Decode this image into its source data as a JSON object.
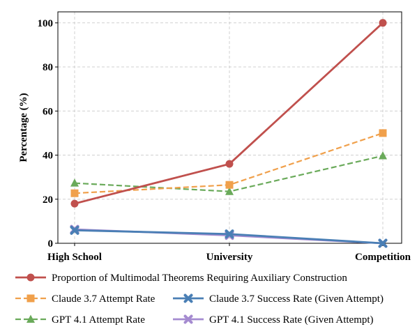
{
  "chart_data": {
    "type": "line",
    "categories": [
      "High School",
      "University",
      "Competition"
    ],
    "ylabel": "Percentage (%)",
    "xlabel": "",
    "title": "",
    "ylim": [
      0,
      105
    ],
    "yticks": [
      0,
      20,
      40,
      60,
      80,
      100
    ],
    "grid": true,
    "legend_position": "bottom",
    "series": [
      {
        "name": "Proportion of Multimodal Theorems Requiring Auxiliary Construction",
        "values": [
          18,
          36,
          100
        ],
        "color": "#c0504d",
        "marker": "circle",
        "dash": "solid"
      },
      {
        "name": "Claude 3.7 Attempt Rate",
        "values": [
          22.7,
          26.5,
          50
        ],
        "color": "#f0a04b",
        "marker": "square",
        "dash": "dashed"
      },
      {
        "name": "GPT 4.1 Attempt Rate",
        "values": [
          27.3,
          23.5,
          39.7
        ],
        "color": "#6aaa5a",
        "marker": "triangle",
        "dash": "dashed"
      },
      {
        "name": "Claude 3.7 Success Rate (Given Attempt)",
        "values": [
          5.9,
          4.2,
          0
        ],
        "color": "#4a7fb5",
        "marker": "x",
        "dash": "solid"
      },
      {
        "name": "GPT 4.1 Success Rate (Given Attempt)",
        "values": [
          6.3,
          3.6,
          0
        ],
        "color": "#a58bd0",
        "marker": "x",
        "dash": "solid"
      }
    ]
  }
}
